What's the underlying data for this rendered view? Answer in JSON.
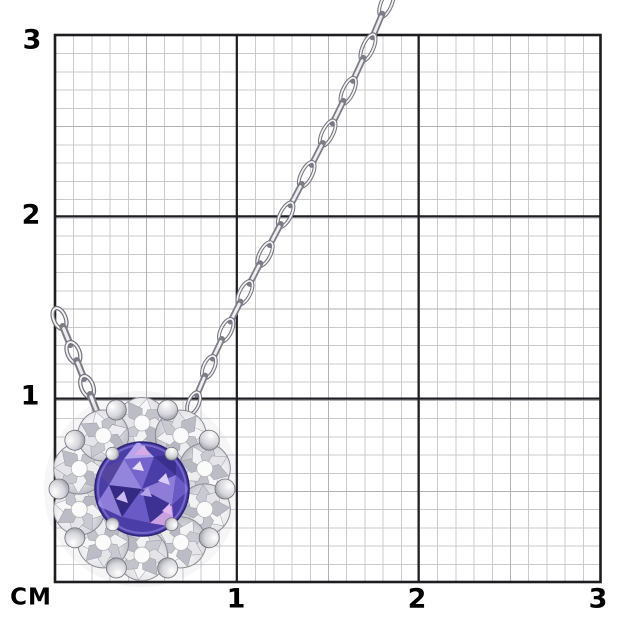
{
  "ruler": {
    "unit_label": "СМ",
    "y_labels": [
      "3",
      "2",
      "1"
    ],
    "x_labels": [
      "1",
      "2",
      "3"
    ]
  },
  "photo": {
    "alt": "White-gold chain necklace with round blue-violet gemstone in a diamond halo flower pendant, photographed on a centimeter grid"
  },
  "colors": {
    "background": "#ffffff",
    "grid_major": "#1e1e22",
    "grid_mid": "#b1b1b7",
    "grid_minor": "#cbcbcf",
    "label_text": "#000000",
    "gemstone_base": "#4b3da8",
    "gemstone_dark": "#342a84",
    "gemstone_light": "#b5a6ec",
    "gemstone_pink": "#c9a0e0",
    "metal_light": "#f3f3f5",
    "metal_mid": "#c6c6ce",
    "metal_dark": "#73737d"
  }
}
